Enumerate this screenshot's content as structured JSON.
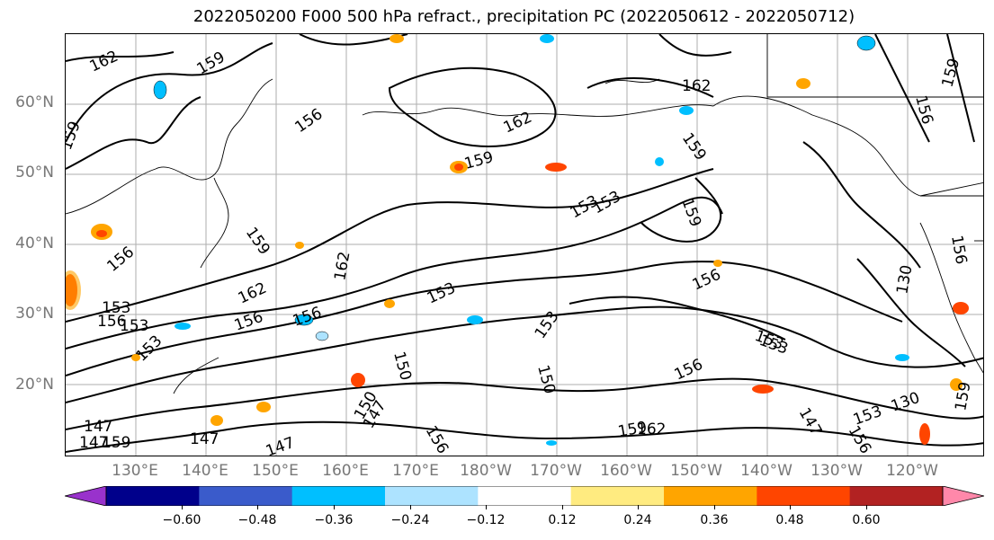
{
  "title": "2022050200 F000 500 hPa refract., precipitation PC (2022050612 - 2022050712)",
  "lat_labels": [
    "60°N",
    "50°N",
    "40°N",
    "30°N",
    "20°N"
  ],
  "lon_labels": [
    "130°E",
    "140°E",
    "150°E",
    "160°E",
    "170°E",
    "180°W",
    "170°W",
    "160°W",
    "150°W",
    "140°W",
    "130°W",
    "120°W"
  ],
  "contour_labels": [
    "162",
    "159",
    "159",
    "156",
    "162",
    "159",
    "162",
    "159",
    "156",
    "159",
    "153",
    "159",
    "153",
    "156",
    "162",
    "156",
    "159",
    "153",
    "153",
    "153",
    "153",
    "156",
    "156",
    "150",
    "150",
    "147",
    "147",
    "147",
    "159",
    "162",
    "130",
    "147",
    "153",
    "156",
    "159",
    "156",
    "153",
    "153",
    "162",
    "156",
    "156",
    "130",
    "153",
    "147",
    "159",
    "150",
    "147",
    "156"
  ],
  "colorbar": {
    "colors": [
      "#9932CC",
      "#00008B",
      "#3A5BCB",
      "#00BFFF",
      "#ADE3FF",
      "#FFFFFF",
      "#FFEB80",
      "#FFA500",
      "#FF4500",
      "#B22222",
      "#FF88AA"
    ],
    "tick_labels": [
      "−0.60",
      "−0.48",
      "−0.36",
      "−0.24",
      "−0.12",
      "0.12",
      "0.24",
      "0.36",
      "0.48",
      "0.60"
    ]
  }
}
